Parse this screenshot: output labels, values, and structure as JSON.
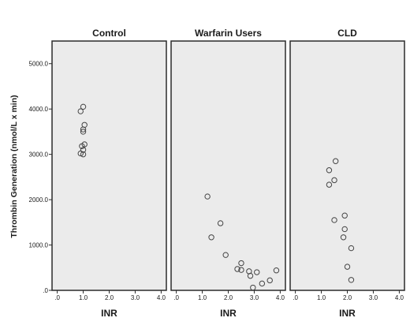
{
  "chart_data": {
    "type": "scatter",
    "ylabel": "Thrombin Generation (nmol/L x min)",
    "ylim": [
      0,
      5500
    ],
    "yticks": [
      0,
      1000,
      2000,
      3000,
      4000,
      5000
    ],
    "ytick_labels": [
      ".0",
      "1000.0",
      "2000.0",
      "3000.0",
      "4000.0",
      "5000.0"
    ],
    "xlim": [
      -0.2,
      4.2
    ],
    "xticks": [
      0,
      1,
      2,
      3,
      4
    ],
    "xtick_labels": [
      ".0",
      "1.0",
      "2.0",
      "3.0",
      "4.0"
    ],
    "grid": false,
    "panels": [
      {
        "title": "Control",
        "xlabel": "INR",
        "points": [
          {
            "x": 1.0,
            "y": 4050
          },
          {
            "x": 0.9,
            "y": 3950
          },
          {
            "x": 1.05,
            "y": 3650
          },
          {
            "x": 1.0,
            "y": 3550
          },
          {
            "x": 1.0,
            "y": 3500
          },
          {
            "x": 1.05,
            "y": 3220
          },
          {
            "x": 0.95,
            "y": 3180
          },
          {
            "x": 1.0,
            "y": 3100
          },
          {
            "x": 0.9,
            "y": 3020
          },
          {
            "x": 1.0,
            "y": 3000
          }
        ]
      },
      {
        "title": "Warfarin Users",
        "xlabel": "INR",
        "points": [
          {
            "x": 1.2,
            "y": 2070
          },
          {
            "x": 1.7,
            "y": 1480
          },
          {
            "x": 1.35,
            "y": 1170
          },
          {
            "x": 1.9,
            "y": 780
          },
          {
            "x": 2.5,
            "y": 600
          },
          {
            "x": 2.35,
            "y": 470
          },
          {
            "x": 2.5,
            "y": 450
          },
          {
            "x": 2.8,
            "y": 420
          },
          {
            "x": 2.85,
            "y": 320
          },
          {
            "x": 3.1,
            "y": 400
          },
          {
            "x": 3.85,
            "y": 440
          },
          {
            "x": 3.6,
            "y": 220
          },
          {
            "x": 3.3,
            "y": 150
          },
          {
            "x": 2.95,
            "y": 60
          }
        ]
      },
      {
        "title": "CLD",
        "xlabel": "INR",
        "points": [
          {
            "x": 1.55,
            "y": 2850
          },
          {
            "x": 1.3,
            "y": 2650
          },
          {
            "x": 1.5,
            "y": 2430
          },
          {
            "x": 1.3,
            "y": 2330
          },
          {
            "x": 1.9,
            "y": 1650
          },
          {
            "x": 1.5,
            "y": 1550
          },
          {
            "x": 1.9,
            "y": 1350
          },
          {
            "x": 1.85,
            "y": 1170
          },
          {
            "x": 2.15,
            "y": 930
          },
          {
            "x": 2.0,
            "y": 520
          },
          {
            "x": 2.15,
            "y": 230
          }
        ]
      }
    ]
  }
}
